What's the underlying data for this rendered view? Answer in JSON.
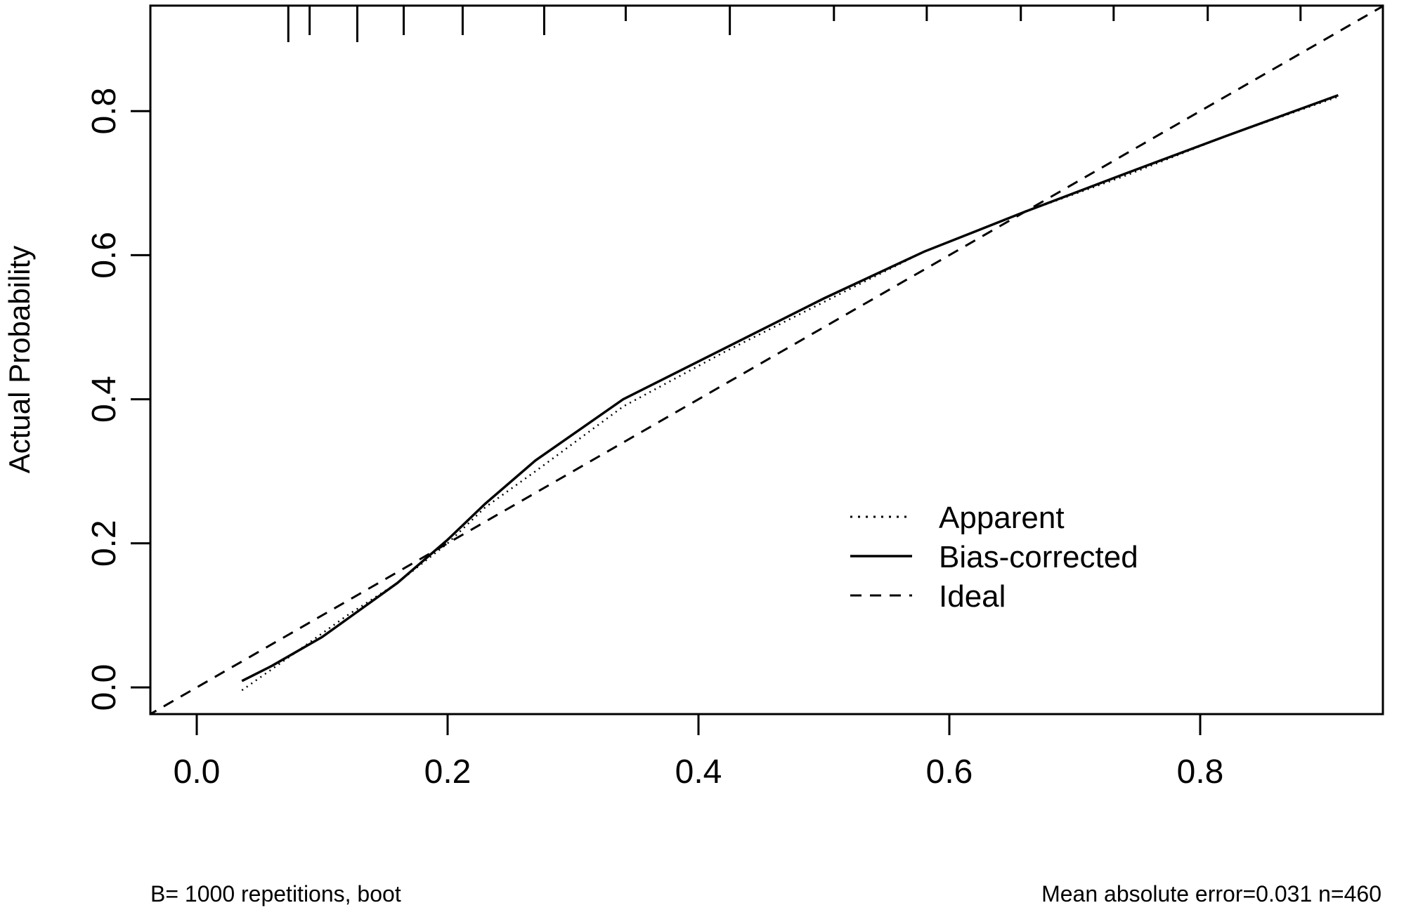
{
  "chart_data": {
    "type": "line",
    "title": "",
    "xlabel": "",
    "ylabel": "Actual Probability",
    "xlim": [
      -0.037,
      0.946
    ],
    "ylim": [
      -0.037,
      0.946
    ],
    "x_ticks": [
      0.0,
      0.2,
      0.4,
      0.6,
      0.8
    ],
    "x_tick_labels": [
      "0.0",
      "0.2",
      "0.4",
      "0.6",
      "0.8"
    ],
    "y_ticks": [
      0.0,
      0.2,
      0.4,
      0.6,
      0.8
    ],
    "y_tick_labels": [
      "0.0",
      "0.2",
      "0.4",
      "0.6",
      "0.8"
    ],
    "grid": false,
    "legend_position": "bottom-right",
    "series": [
      {
        "name": "Apparent",
        "style": "dotted",
        "x": [
          0.036,
          0.08,
          0.12,
          0.16,
          0.2,
          0.23,
          0.27,
          0.34,
          0.42,
          0.5,
          0.58,
          0.66,
          0.74,
          0.82,
          0.91
        ],
        "y": [
          -0.004,
          0.05,
          0.1,
          0.145,
          0.2,
          0.25,
          0.3,
          0.39,
          0.465,
          0.535,
          0.605,
          0.66,
          0.71,
          0.765,
          0.82
        ]
      },
      {
        "name": "Bias-corrected",
        "style": "solid",
        "x": [
          0.036,
          0.06,
          0.1,
          0.16,
          0.2,
          0.23,
          0.27,
          0.34,
          0.42,
          0.5,
          0.58,
          0.66,
          0.74,
          0.82,
          0.91
        ],
        "y": [
          0.009,
          0.03,
          0.07,
          0.145,
          0.205,
          0.255,
          0.315,
          0.4,
          0.47,
          0.54,
          0.605,
          0.66,
          0.713,
          0.765,
          0.822
        ]
      },
      {
        "name": "Ideal",
        "style": "dashed",
        "x": [
          -0.04,
          0.95
        ],
        "y": [
          -0.04,
          0.95
        ]
      }
    ],
    "rug": [
      0.073,
      0.09,
      0.128,
      0.165,
      0.212,
      0.277,
      0.342,
      0.425,
      0.508,
      0.582,
      0.657,
      0.731,
      0.806,
      0.88
    ],
    "footer_left": "B= 1000 repetitions, boot",
    "footer_right": "Mean absolute error=0.031 n=460"
  }
}
